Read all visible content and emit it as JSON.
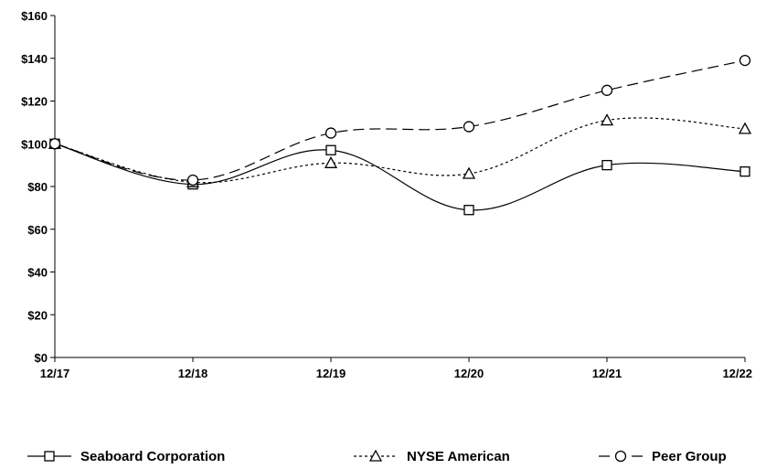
{
  "chart_data": {
    "type": "line",
    "categories": [
      "12/17",
      "12/18",
      "12/19",
      "12/20",
      "12/21",
      "12/22"
    ],
    "series": [
      {
        "name": "Seaboard Corporation",
        "values": [
          100,
          81,
          97,
          69,
          90,
          87
        ],
        "marker": "square",
        "dash": "solid"
      },
      {
        "name": "NYSE American",
        "values": [
          100,
          82,
          91,
          86,
          111,
          107
        ],
        "marker": "triangle",
        "dash": "dotted"
      },
      {
        "name": "Peer Group",
        "values": [
          100,
          83,
          105,
          108,
          125,
          139
        ],
        "marker": "circle",
        "dash": "dashed"
      }
    ],
    "yticks": [
      "$0",
      "$20",
      "$40",
      "$60",
      "$80",
      "$100",
      "$120",
      "$140",
      "$160"
    ],
    "ytick_values": [
      0,
      20,
      40,
      60,
      80,
      100,
      120,
      140,
      160
    ],
    "ylim": [
      0,
      160
    ],
    "title": "",
    "xlabel": "",
    "ylabel": "",
    "grid": false,
    "legend_position": "bottom",
    "colors": {
      "line": "#000000",
      "axis": "#000000"
    }
  }
}
